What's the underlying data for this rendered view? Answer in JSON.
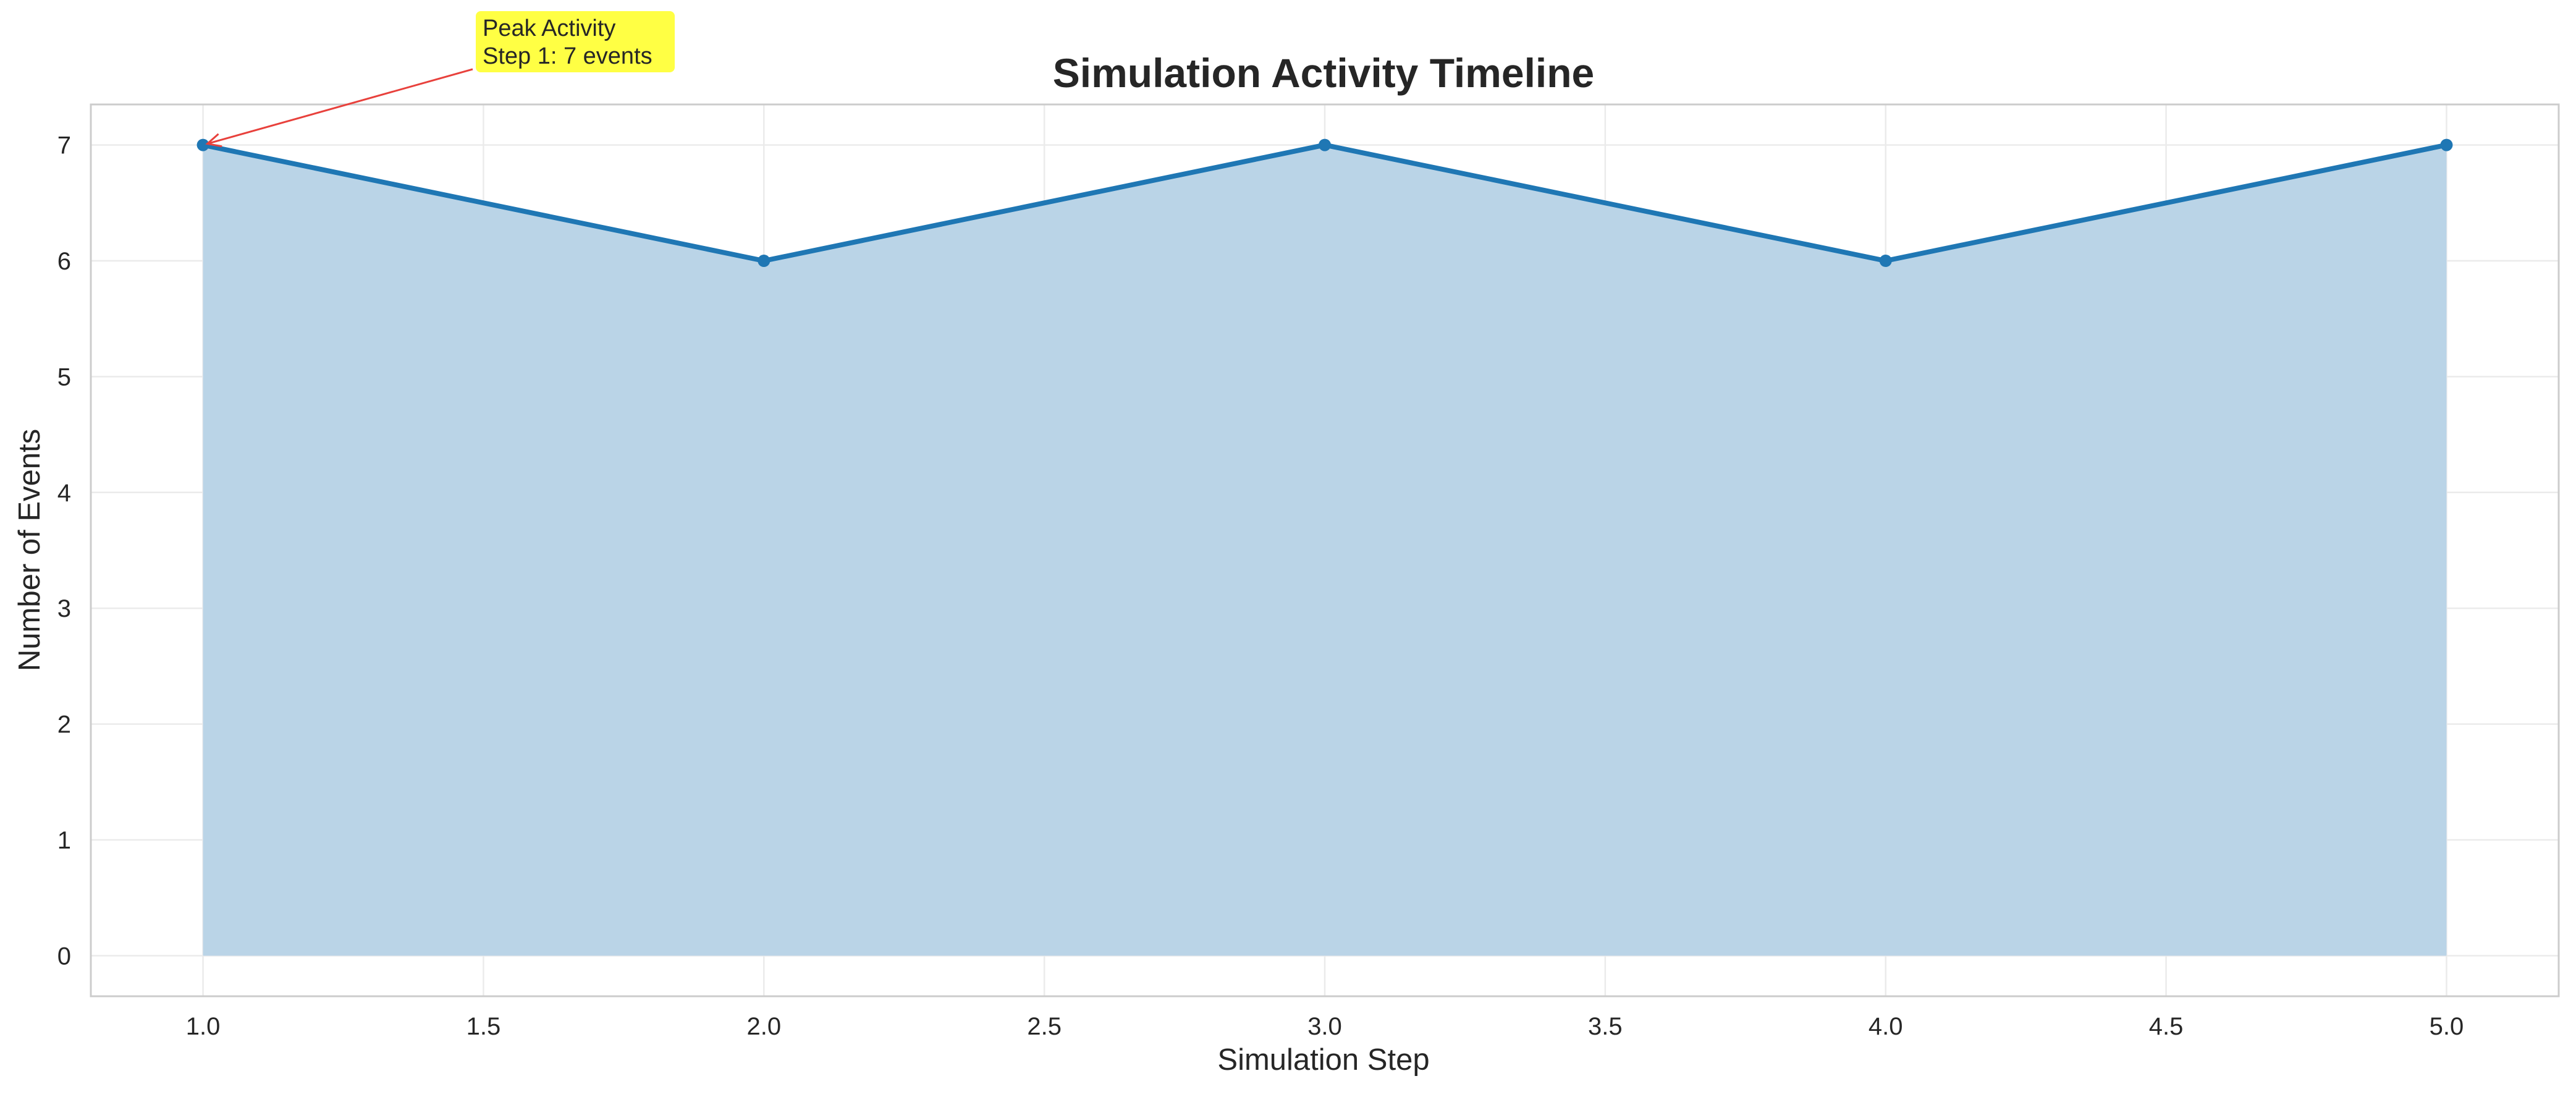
{
  "chart_data": {
    "type": "area",
    "title": "Simulation Activity Timeline",
    "xlabel": "Simulation Step",
    "ylabel": "Number of Events",
    "x": [
      1,
      2,
      3,
      4,
      5
    ],
    "series": [
      {
        "values": [
          7,
          6,
          7,
          6,
          7
        ]
      }
    ],
    "xlim": [
      0.8,
      5.2
    ],
    "ylim": [
      -0.35,
      7.35
    ],
    "xticks": [
      1.0,
      1.5,
      2.0,
      2.5,
      3.0,
      3.5,
      4.0,
      4.5,
      5.0
    ],
    "xtick_labels": [
      "1.0",
      "1.5",
      "2.0",
      "2.5",
      "3.0",
      "3.5",
      "4.0",
      "4.5",
      "5.0"
    ],
    "yticks": [
      0,
      1,
      2,
      3,
      4,
      5,
      6,
      7
    ],
    "ytick_labels": [
      "0",
      "1",
      "2",
      "3",
      "4",
      "5",
      "6",
      "7"
    ],
    "grid": true,
    "legend": "none",
    "annotation": {
      "lines": [
        "Peak Activity",
        "Step 1: 7 events"
      ],
      "target_x": 1,
      "target_y": 7
    },
    "colors": {
      "line": "#1f77b4",
      "fill": "#bad4e7",
      "annotation_box": "#ffff44",
      "annotation_arrow": "#e8413c",
      "grid": "#ebebeb",
      "frame": "#cccccc",
      "text": "#262626"
    }
  }
}
